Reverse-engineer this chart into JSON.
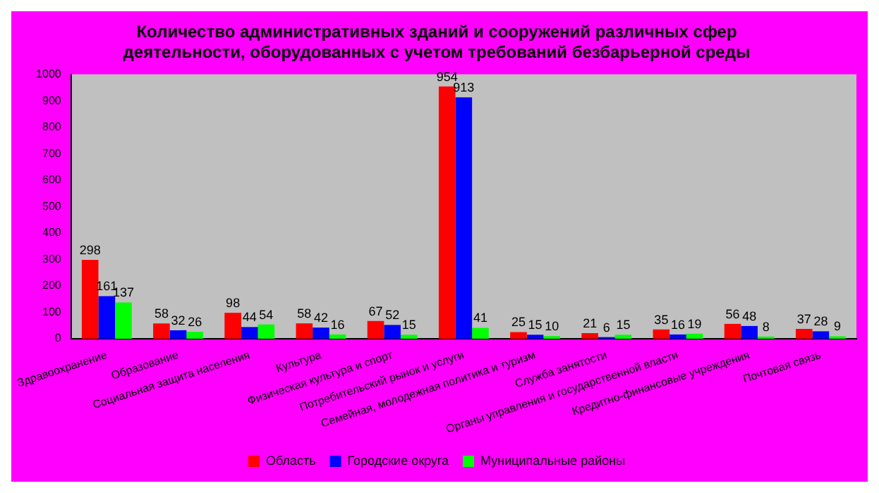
{
  "chart_data": {
    "type": "bar",
    "title": "Количество административных зданий и сооружений различных сфер деятельности, оборудованных с учетом требований безбарьерной среды",
    "categories": [
      "Здравоохранение",
      "Образование",
      "Социальная защита населения",
      "Культура",
      "Физическая культура и спорт",
      "Потребительский рынок и услуги",
      "Семейная, молодежная политика и туризм",
      "Служба занятости",
      "Органы управления и государственной власти",
      "Кредитно-финансовые учреждения",
      "Почтовая связь"
    ],
    "series": [
      {
        "name": "Область",
        "color": "#ff0000",
        "values": [
          298,
          58,
          98,
          58,
          67,
          954,
          25,
          21,
          35,
          56,
          37
        ]
      },
      {
        "name": "Городские округа",
        "color": "#0000ff",
        "values": [
          161,
          32,
          44,
          42,
          52,
          913,
          15,
          6,
          16,
          48,
          28
        ]
      },
      {
        "name": "Муниципальные районы",
        "color": "#00ff00",
        "values": [
          137,
          26,
          54,
          16,
          15,
          41,
          10,
          15,
          19,
          8,
          9
        ]
      }
    ],
    "ylim": [
      0,
      1000
    ],
    "yticks": [
      0,
      100,
      200,
      300,
      400,
      500,
      600,
      700,
      800,
      900,
      1000
    ],
    "grid": false,
    "legend": "bottom",
    "data_labels": true
  }
}
